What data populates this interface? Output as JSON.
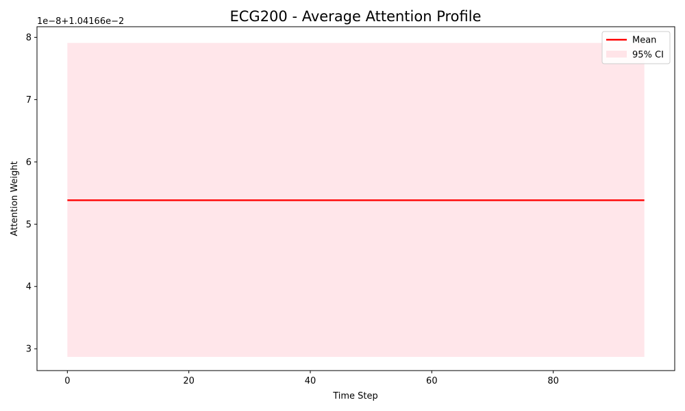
{
  "chart_data": {
    "type": "line",
    "title": "ECG200 - Average Attention Profile",
    "xlabel": "Time Step",
    "ylabel": "Attention Weight",
    "y_offset_label": "1e−8+1.04166e−2",
    "xlim": [
      -5.0,
      100.0
    ],
    "ylim": [
      2.65,
      8.17
    ],
    "x_ticks": [
      0,
      20,
      40,
      60,
      80
    ],
    "y_ticks": [
      3,
      4,
      5,
      6,
      7,
      8
    ],
    "grid": false,
    "legend_position": "top-right",
    "series": [
      {
        "name": "Mean",
        "kind": "line",
        "color": "#ff0000",
        "x": [
          0,
          95
        ],
        "y": [
          5.385,
          5.385
        ]
      },
      {
        "name": "95% CI",
        "kind": "band",
        "color": "#ffc0cb",
        "x": [
          0,
          95
        ],
        "lower": [
          2.87,
          2.87
        ],
        "upper": [
          7.91,
          7.91
        ]
      }
    ]
  }
}
